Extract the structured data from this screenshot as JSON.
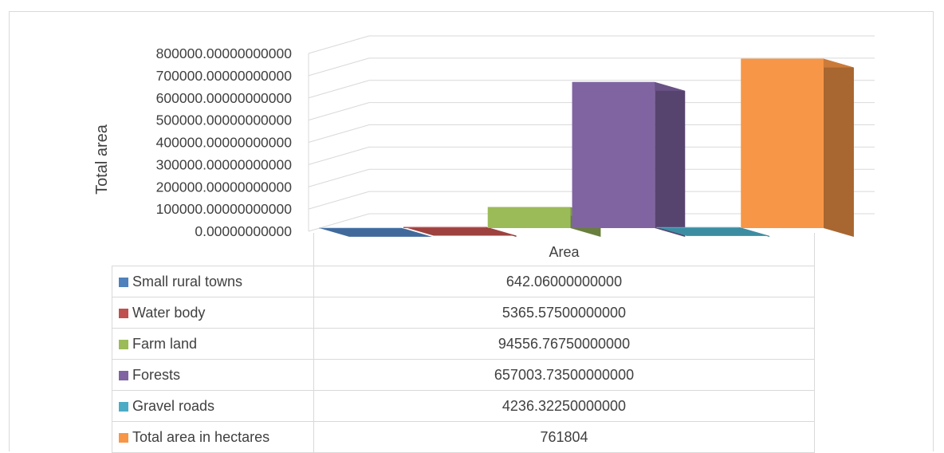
{
  "chart_data": {
    "type": "bar",
    "title": "",
    "xlabel": "Area",
    "ylabel": "Total area",
    "ylim": [
      0,
      800000
    ],
    "y_ticks": [
      "0.00000000000",
      "100000.00000000000",
      "200000.00000000000",
      "300000.00000000000",
      "400000.00000000000",
      "500000.00000000000",
      "600000.00000000000",
      "700000.00000000000",
      "800000.00000000000"
    ],
    "grid": true,
    "legend": "data-table",
    "categories": [
      "Area"
    ],
    "series": [
      {
        "name": "Small rural towns",
        "values": [
          642.06
        ],
        "label": "642.06000000000",
        "color": "#4f81bd"
      },
      {
        "name": "Water body",
        "values": [
          5365.575
        ],
        "label": "5365.57500000000",
        "color": "#c0504d"
      },
      {
        "name": "Farm land",
        "values": [
          94556.7675
        ],
        "label": "94556.76750000000",
        "color": "#9bbb59"
      },
      {
        "name": "Forests",
        "values": [
          657003.735
        ],
        "label": "657003.73500000000",
        "color": "#8064a2"
      },
      {
        "name": "Gravel roads",
        "values": [
          4236.3225
        ],
        "label": "4236.32250000000",
        "color": "#4bacc6"
      },
      {
        "name": "Total area in hectares",
        "values": [
          761804
        ],
        "label": "761804",
        "color": "#f79646"
      }
    ]
  }
}
